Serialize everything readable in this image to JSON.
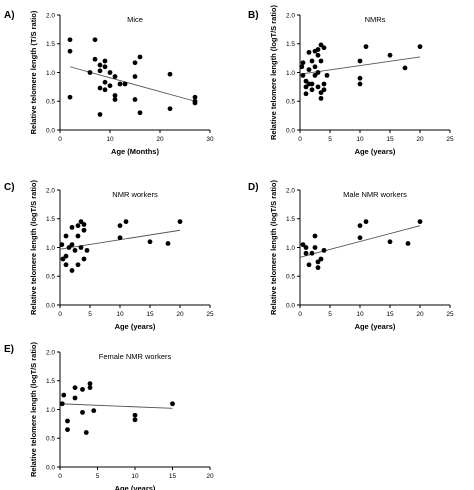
{
  "chart_data": [
    {
      "panel": "A)",
      "type": "scatter",
      "title": "Mice",
      "xlabel": "Age (Months)",
      "ylabel": "Relative telomere length (T/S ratio)",
      "xlim": [
        0,
        30
      ],
      "ylim": [
        0.0,
        2.0
      ],
      "xticks": [
        "0",
        "10",
        "20",
        "30"
      ],
      "yticks": [
        "0.0",
        "0.5",
        "1.0",
        "1.5",
        "2.0"
      ],
      "x": [
        2,
        2,
        2,
        6,
        7,
        7,
        8,
        8,
        8,
        8,
        9,
        9,
        9,
        9,
        10,
        10,
        11,
        11,
        11,
        12,
        13,
        15,
        15,
        15,
        16,
        16,
        22,
        22,
        27,
        27,
        27
      ],
      "y": [
        1.57,
        1.37,
        0.57,
        1.0,
        1.57,
        1.23,
        1.13,
        1.03,
        0.73,
        0.27,
        1.2,
        1.1,
        0.83,
        0.7,
        1.0,
        0.77,
        0.6,
        0.53,
        0.93,
        0.8,
        0.8,
        1.17,
        0.93,
        0.53,
        1.27,
        0.3,
        0.97,
        0.37,
        0.57,
        0.5,
        0.47
      ],
      "trendline": {
        "x": [
          2,
          27
        ],
        "y": [
          1.1,
          0.5
        ]
      }
    },
    {
      "panel": "B)",
      "type": "scatter",
      "title": "NMRs",
      "xlabel": "Age (years)",
      "ylabel": "Relative telomere length (logT/S ratio)",
      "xlim": [
        0,
        25
      ],
      "ylim": [
        0.0,
        2.0
      ],
      "xticks": [
        "0",
        "5",
        "10",
        "15",
        "20",
        "25"
      ],
      "yticks": [
        "0.0",
        "0.5",
        "1.0",
        "1.5",
        "2.0"
      ],
      "x": [
        0.3,
        0.5,
        0.5,
        1,
        1,
        1,
        1.5,
        1.5,
        1.5,
        2,
        2,
        2,
        2.5,
        2.5,
        2.5,
        3,
        3,
        3,
        3,
        3.5,
        3.5,
        3.5,
        3.5,
        4,
        4,
        4,
        4.5,
        10,
        10,
        10,
        11,
        15,
        17.5,
        20
      ],
      "y": [
        1.1,
        1.17,
        0.95,
        0.85,
        0.75,
        0.63,
        1.35,
        1.05,
        0.8,
        1.2,
        0.8,
        0.7,
        1.37,
        1.1,
        0.95,
        1.4,
        1.3,
        1.0,
        0.75,
        1.48,
        1.2,
        0.65,
        0.55,
        1.43,
        0.8,
        0.7,
        0.95,
        1.2,
        0.9,
        0.8,
        1.45,
        1.3,
        1.08,
        1.45
      ],
      "trendline": {
        "x": [
          0,
          20
        ],
        "y": [
          0.97,
          1.27
        ]
      }
    },
    {
      "panel": "C)",
      "type": "scatter",
      "title": "NMR workers",
      "xlabel": "Age (years)",
      "ylabel": "Relative telomere length (logT/S ratio)",
      "xlim": [
        0,
        25
      ],
      "ylim": [
        0.0,
        2.0
      ],
      "xticks": [
        "0",
        "5",
        "10",
        "15",
        "20",
        "25"
      ],
      "yticks": [
        "0.0",
        "0.5",
        "1.0",
        "1.5",
        "2.0"
      ],
      "x": [
        0.3,
        0.5,
        1,
        1,
        1,
        1.5,
        2,
        2,
        2,
        2.5,
        3,
        3,
        3,
        3.5,
        3.5,
        4,
        4,
        4,
        4.5,
        10,
        10,
        11,
        15,
        18,
        20
      ],
      "y": [
        1.05,
        0.8,
        1.2,
        0.85,
        0.7,
        1.0,
        1.35,
        1.05,
        0.6,
        0.95,
        1.38,
        1.2,
        0.7,
        1.45,
        1.0,
        1.4,
        1.3,
        0.8,
        0.95,
        1.17,
        1.38,
        1.45,
        1.1,
        1.07,
        1.45
      ],
      "trendline": {
        "x": [
          0,
          20
        ],
        "y": [
          0.97,
          1.3
        ]
      }
    },
    {
      "panel": "D)",
      "type": "scatter",
      "title": "Male NMR workers",
      "xlabel": "Age (years)",
      "ylabel": "Relative telomere length (logT/S ratio)",
      "xlim": [
        0,
        25
      ],
      "ylim": [
        0.0,
        2.0
      ],
      "xticks": [
        "0",
        "5",
        "10",
        "15",
        "20",
        "25"
      ],
      "yticks": [
        "0.0",
        "0.5",
        "1.0",
        "1.5",
        "2.0"
      ],
      "x": [
        0.5,
        1,
        1,
        1.5,
        2,
        2.5,
        2.5,
        3,
        3,
        3.5,
        4,
        10,
        10,
        11,
        15,
        18,
        20
      ],
      "y": [
        1.05,
        1.0,
        0.9,
        0.7,
        0.9,
        1.2,
        1.0,
        0.75,
        0.65,
        0.8,
        0.95,
        1.17,
        1.38,
        1.45,
        1.1,
        1.07,
        1.45
      ],
      "trendline": {
        "x": [
          0,
          20
        ],
        "y": [
          0.83,
          1.38
        ]
      }
    },
    {
      "panel": "E)",
      "type": "scatter",
      "title": "Female NMR workers",
      "xlabel": "Age (years)",
      "ylabel": "Relative telomere length (logT/S ratio)",
      "xlim": [
        0,
        20
      ],
      "ylim": [
        0.0,
        2.0
      ],
      "xticks": [
        "0",
        "5",
        "10",
        "15",
        "20"
      ],
      "yticks": [
        "0.0",
        "0.5",
        "1.0",
        "1.5",
        "2.0"
      ],
      "x": [
        0.3,
        0.5,
        1,
        1,
        2,
        2,
        3,
        3,
        3.5,
        4,
        4,
        4.5,
        10,
        10,
        15
      ],
      "y": [
        1.1,
        1.25,
        0.8,
        0.65,
        1.38,
        1.2,
        1.35,
        0.95,
        0.6,
        1.45,
        1.38,
        0.98,
        0.9,
        0.82,
        1.1
      ],
      "trendline": {
        "x": [
          0,
          15
        ],
        "y": [
          1.1,
          1.02
        ]
      }
    }
  ]
}
